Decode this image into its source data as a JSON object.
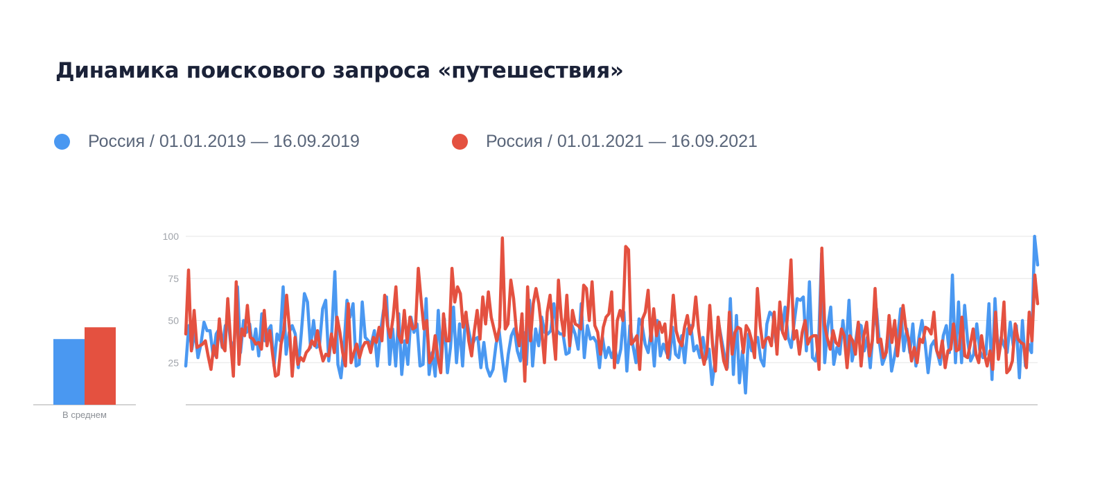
{
  "title": "Динамика поискового запроса «путешествия»",
  "colors": {
    "series1": "#4a98f1",
    "series2": "#e45140",
    "grid": "#e6e6e6",
    "axis": "#c6c6c6"
  },
  "chart_data": {
    "type": "line",
    "title": "Динамика поискового запроса «путешествия»",
    "ylim": [
      0,
      100
    ],
    "y_ticks": [
      25,
      50,
      75,
      100
    ],
    "grid": true,
    "legend_position": "top-left",
    "average_label": "В среднем",
    "averages": [
      39,
      46
    ],
    "series": [
      {
        "name": "Россия / 01.01.2019 — 16.09.2019",
        "values": [
          23,
          47,
          33,
          44,
          28,
          36,
          49,
          44,
          44,
          29,
          42,
          45,
          34,
          47,
          49,
          33,
          38,
          70,
          31,
          50,
          43,
          48,
          33,
          45,
          29,
          54,
          38,
          44,
          47,
          23,
          42,
          38,
          70,
          30,
          43,
          47,
          42,
          22,
          43,
          66,
          61,
          34,
          50,
          34,
          36,
          57,
          62,
          26,
          43,
          79,
          24,
          16,
          34,
          62,
          52,
          60,
          23,
          24,
          61,
          40,
          38,
          36,
          44,
          23,
          43,
          56,
          64,
          24,
          45,
          23,
          54,
          18,
          38,
          24,
          52,
          43,
          48,
          23,
          24,
          63,
          18,
          31,
          17,
          56,
          26,
          51,
          19,
          34,
          58,
          25,
          48,
          23,
          54,
          44,
          35,
          39,
          40,
          22,
          37,
          22,
          17,
          21,
          36,
          44,
          28,
          14,
          30,
          41,
          45,
          32,
          26,
          43,
          24,
          62,
          23,
          45,
          35,
          52,
          43,
          42,
          44,
          60,
          44,
          42,
          42,
          30,
          31,
          47,
          42,
          33,
          60,
          28,
          47,
          39,
          40,
          37,
          22,
          40,
          28,
          34,
          28,
          34,
          25,
          33,
          55,
          20,
          47,
          35,
          25,
          51,
          47,
          36,
          31,
          45,
          23,
          50,
          29,
          36,
          31,
          27,
          46,
          30,
          28,
          41,
          25,
          45,
          47,
          32,
          35,
          28,
          40,
          27,
          33,
          12,
          26,
          50,
          40,
          30,
          22,
          63,
          18,
          53,
          13,
          32,
          7,
          42,
          32,
          36,
          40,
          27,
          23,
          48,
          55,
          53,
          37,
          48,
          44,
          58,
          40,
          34,
          49,
          63,
          62,
          64,
          32,
          73,
          28,
          26,
          36,
          90,
          25,
          46,
          58,
          24,
          34,
          30,
          50,
          32,
          62,
          26,
          35,
          48,
          47,
          32,
          40,
          22,
          46,
          57,
          37,
          24,
          29,
          45,
          20,
          29,
          40,
          57,
          32,
          45,
          31,
          48,
          23,
          40,
          50,
          37,
          19,
          35,
          38,
          31,
          24,
          41,
          47,
          31,
          77,
          25,
          61,
          25,
          59,
          38,
          26,
          30,
          48,
          32,
          28,
          30,
          60,
          15,
          63,
          31,
          40,
          35,
          31,
          49,
          35,
          47,
          16,
          50,
          23,
          36,
          31,
          100,
          83
        ]
      },
      {
        "name": "Россия / 01.01.2021 — 16.09.2021",
        "values": [
          42,
          80,
          32,
          56,
          34,
          35,
          36,
          38,
          29,
          21,
          35,
          28,
          51,
          35,
          32,
          63,
          38,
          17,
          73,
          24,
          45,
          41,
          59,
          40,
          39,
          36,
          37,
          33,
          56,
          35,
          44,
          30,
          17,
          18,
          36,
          44,
          65,
          45,
          17,
          40,
          24,
          28,
          26,
          31,
          33,
          38,
          35,
          44,
          33,
          26,
          30,
          29,
          42,
          31,
          52,
          43,
          31,
          23,
          60,
          25,
          31,
          36,
          28,
          34,
          37,
          37,
          31,
          40,
          37,
          46,
          38,
          65,
          47,
          40,
          52,
          70,
          41,
          37,
          56,
          37,
          52,
          45,
          46,
          81,
          62,
          45,
          50,
          25,
          28,
          41,
          28,
          19,
          54,
          38,
          38,
          81,
          61,
          70,
          66,
          46,
          55,
          38,
          29,
          44,
          56,
          39,
          64,
          48,
          67,
          52,
          45,
          38,
          46,
          99,
          45,
          48,
          74,
          63,
          44,
          35,
          54,
          14,
          70,
          38,
          60,
          69,
          60,
          45,
          25,
          55,
          65,
          45,
          27,
          74,
          52,
          41,
          65,
          35,
          56,
          48,
          47,
          45,
          71,
          69,
          50,
          73,
          47,
          43,
          30,
          46,
          52,
          54,
          67,
          22,
          50,
          56,
          50,
          94,
          92,
          36,
          38,
          41,
          21,
          51,
          55,
          68,
          38,
          57,
          41,
          49,
          43,
          48,
          28,
          42,
          65,
          44,
          38,
          35,
          46,
          53,
          42,
          47,
          64,
          45,
          32,
          24,
          32,
          59,
          36,
          20,
          52,
          38,
          26,
          21,
          55,
          30,
          43,
          46,
          45,
          31,
          47,
          44,
          38,
          28,
          69,
          47,
          34,
          39,
          40,
          35,
          55,
          30,
          61,
          43,
          39,
          58,
          86,
          39,
          44,
          30,
          43,
          50,
          36,
          40,
          41,
          41,
          21,
          93,
          47,
          39,
          33,
          44,
          37,
          35,
          45,
          41,
          22,
          41,
          38,
          30,
          49,
          23,
          41,
          49,
          29,
          38,
          69,
          37,
          39,
          28,
          31,
          53,
          37,
          50,
          29,
          44,
          59,
          45,
          39,
          26,
          34,
          25,
          39,
          37,
          46,
          45,
          42,
          55,
          32,
          28,
          38,
          22,
          32,
          33,
          48,
          32,
          33,
          52,
          29,
          28,
          36,
          45,
          30,
          25,
          41,
          30,
          23,
          32,
          21,
          55,
          27,
          38,
          61,
          19,
          21,
          26,
          48,
          39,
          37,
          36,
          22,
          55,
          38,
          77,
          60
        ]
      }
    ]
  }
}
